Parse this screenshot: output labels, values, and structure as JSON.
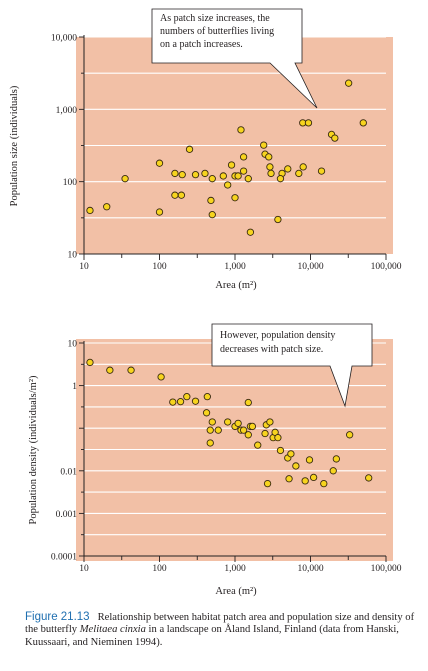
{
  "colors": {
    "plot_bg": "#f2c0a6",
    "gridline": "#ffffff",
    "point_fill": "#f7d41f",
    "point_stroke": "#3a2a10",
    "callout_fill": "#ffffff",
    "caption_accent": "#1f6fb0"
  },
  "chart_data": [
    {
      "type": "scatter",
      "title": "",
      "xlabel": "Area (m²)",
      "ylabel": "Population size (individuals)",
      "x_scale": "log",
      "y_scale": "log",
      "xlim": [
        10,
        100000
      ],
      "ylim": [
        10,
        10000
      ],
      "x_ticks": [
        "10",
        "100",
        "1,000",
        "10,000",
        "100,000"
      ],
      "y_ticks": [
        "10",
        "100",
        "1,000",
        "10,000"
      ],
      "callout": [
        "As patch size increases, the",
        "numbers of butterflies living",
        "on a patch increases."
      ],
      "points": [
        [
          12,
          40
        ],
        [
          20,
          45
        ],
        [
          35,
          110
        ],
        [
          100,
          38
        ],
        [
          100,
          180
        ],
        [
          160,
          65
        ],
        [
          195,
          65
        ],
        [
          160,
          130
        ],
        [
          200,
          125
        ],
        [
          250,
          280
        ],
        [
          300,
          125
        ],
        [
          400,
          130
        ],
        [
          480,
          55
        ],
        [
          500,
          35
        ],
        [
          500,
          110
        ],
        [
          700,
          120
        ],
        [
          800,
          90
        ],
        [
          900,
          170
        ],
        [
          1000,
          60
        ],
        [
          1000,
          120
        ],
        [
          1100,
          120
        ],
        [
          1300,
          140
        ],
        [
          1300,
          220
        ],
        [
          1600,
          20
        ],
        [
          1500,
          110
        ],
        [
          1200,
          520
        ],
        [
          2400,
          320
        ],
        [
          2500,
          240
        ],
        [
          2800,
          220
        ],
        [
          2900,
          160
        ],
        [
          3000,
          130
        ],
        [
          3700,
          30
        ],
        [
          4200,
          130
        ],
        [
          4000,
          110
        ],
        [
          5000,
          150
        ],
        [
          7000,
          130
        ],
        [
          8000,
          160
        ],
        [
          7900,
          650
        ],
        [
          9400,
          650
        ],
        [
          14000,
          140
        ],
        [
          19000,
          450
        ],
        [
          21000,
          400
        ],
        [
          32000,
          2300
        ],
        [
          50000,
          650
        ]
      ]
    },
    {
      "type": "scatter",
      "title": "",
      "xlabel": "Area (m²)",
      "ylabel": "Population density (individuals/m²)",
      "x_scale": "log",
      "y_scale": "log",
      "xlim": [
        10,
        100000
      ],
      "ylim": [
        0.0001,
        10
      ],
      "x_ticks": [
        "10",
        "100",
        "1,000",
        "10,000",
        "100,000"
      ],
      "y_ticks": [
        "0.0001",
        "0.001",
        "0.01",
        "1",
        "10"
      ],
      "callout": [
        "However, population density",
        "decreases with patch size."
      ],
      "points": [
        [
          12,
          3.5
        ],
        [
          22,
          2.3
        ],
        [
          42,
          2.3
        ],
        [
          105,
          1.6
        ],
        [
          150,
          0.41
        ],
        [
          190,
          0.42
        ],
        [
          230,
          0.55
        ],
        [
          300,
          0.43
        ],
        [
          430,
          0.55
        ],
        [
          420,
          0.23
        ],
        [
          500,
          0.14
        ],
        [
          470,
          0.09
        ],
        [
          470,
          0.045
        ],
        [
          600,
          0.09
        ],
        [
          800,
          0.14
        ],
        [
          1000,
          0.11
        ],
        [
          1100,
          0.13
        ],
        [
          1200,
          0.09
        ],
        [
          1300,
          0.09
        ],
        [
          1500,
          0.07
        ],
        [
          1600,
          0.11
        ],
        [
          1700,
          0.11
        ],
        [
          1500,
          0.4
        ],
        [
          2000,
          0.04
        ],
        [
          2500,
          0.075
        ],
        [
          2600,
          0.12
        ],
        [
          2900,
          0.14
        ],
        [
          3200,
          0.06
        ],
        [
          3400,
          0.08
        ],
        [
          3700,
          0.06
        ],
        [
          4000,
          0.03
        ],
        [
          5000,
          0.02
        ],
        [
          5500,
          0.025
        ],
        [
          6400,
          0.013
        ],
        [
          5200,
          0.0065
        ],
        [
          2700,
          0.005
        ],
        [
          8500,
          0.0058
        ],
        [
          9700,
          0.018
        ],
        [
          11000,
          0.007
        ],
        [
          15000,
          0.005
        ],
        [
          20000,
          0.01
        ],
        [
          22000,
          0.019
        ],
        [
          33000,
          0.07
        ],
        [
          59000,
          0.0068
        ]
      ]
    }
  ],
  "caption": {
    "label": "Figure 21.13",
    "text_before": "Relationship between habitat patch area and population size and density of the butterfly ",
    "species": "Melitaea cinxia",
    "text_after": " in a landscape on Åland Island, Finland (data from Hanski, Kuussaari, and Nieminen 1994)."
  }
}
